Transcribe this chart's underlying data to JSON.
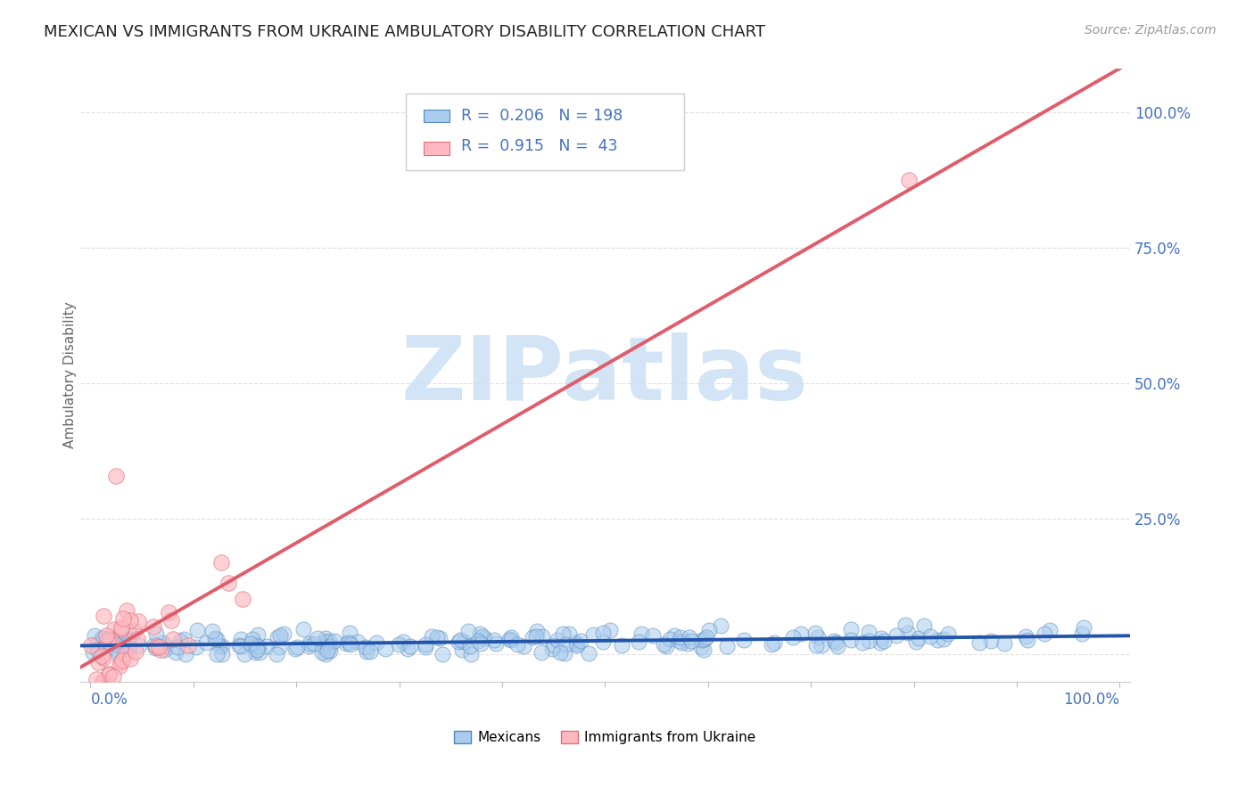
{
  "title": "MEXICAN VS IMMIGRANTS FROM UKRAINE AMBULATORY DISABILITY CORRELATION CHART",
  "source": "Source: ZipAtlas.com",
  "ylabel": "Ambulatory Disability",
  "ytick_labels": [
    "",
    "25.0%",
    "50.0%",
    "75.0%",
    "100.0%"
  ],
  "legend_label1": "Mexicans",
  "legend_label2": "Immigrants from Ukraine",
  "r1": 0.206,
  "n1": 198,
  "r2": 0.915,
  "n2": 43,
  "color_blue": "#aaccee",
  "color_blue_edge": "#5588bb",
  "color_blue_line": "#2255aa",
  "color_pink": "#ffb8c0",
  "color_pink_edge": "#e0707a",
  "color_pink_line": "#e05c6a",
  "color_text_blue": "#4472c4",
  "watermark": "ZIPatlas",
  "watermark_color": "#cce0f5",
  "background": "#ffffff",
  "grid_color": "#cccccc"
}
